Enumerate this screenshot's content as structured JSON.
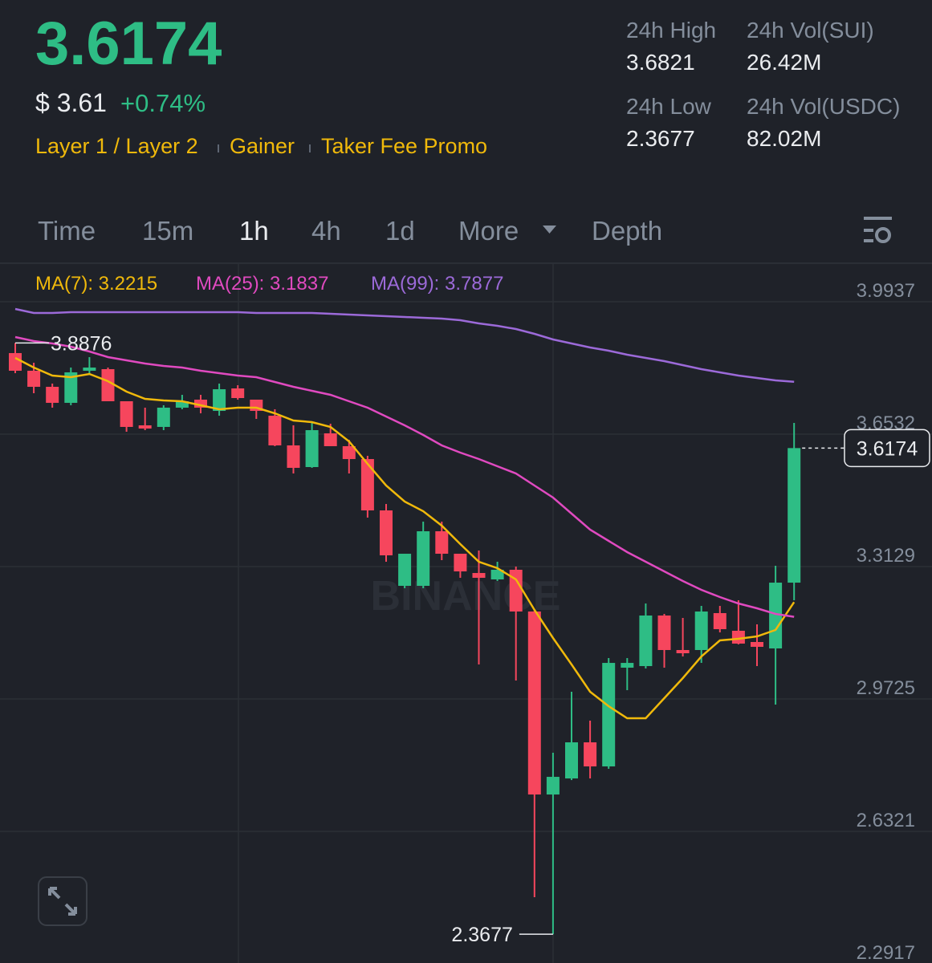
{
  "header": {
    "price": "3.6174",
    "fiat": "$ 3.61",
    "change": "+0.74%",
    "tags": [
      "Layer 1 / Layer 2",
      "Gainer",
      "Taker Fee Promo"
    ],
    "stats": [
      {
        "label": "24h High",
        "value": "3.6821"
      },
      {
        "label": "24h Vol(SUI)",
        "value": "26.42M"
      },
      {
        "label": "24h Low",
        "value": "2.3677"
      },
      {
        "label": "24h Vol(USDC)",
        "value": "82.02M"
      }
    ]
  },
  "tabs": [
    "Time",
    "15m",
    "1h",
    "4h",
    "1d",
    "More",
    "Depth"
  ],
  "chart_data": {
    "type": "candlestick",
    "watermark": "BINANCE",
    "up_color": "#2ebd85",
    "down_color": "#f6465d",
    "open": [
      3.8616,
      3.8162,
      3.7749,
      3.7337,
      3.8162,
      3.8203,
      3.7378,
      3.6759,
      3.6718,
      3.7213,
      3.7419,
      3.713,
      3.7708,
      3.7419,
      3.7006,
      3.6243,
      3.5686,
      3.6553,
      3.6223,
      3.5892,
      3.4572,
      3.2633,
      3.2633,
      3.4036,
      3.3458,
      3.2963,
      3.2798,
      3.3046,
      3.1973,
      2.7269,
      2.7682,
      2.861,
      2.7991,
      3.0529,
      3.057,
      3.187,
      3.0983,
      3.0983,
      3.1932,
      3.1478,
      3.1189,
      3.1024,
      3.2715
    ],
    "high": [
      3.8876,
      3.8368,
      3.7832,
      3.8244,
      3.8512,
      3.8244,
      3.7378,
      3.7213,
      3.7275,
      3.7543,
      3.7543,
      3.7832,
      3.779,
      3.7419,
      3.7172,
      3.6759,
      3.6862,
      3.68,
      3.6388,
      3.5975,
      3.4737,
      3.3458,
      3.4283,
      3.4283,
      3.3458,
      3.3541,
      3.3252,
      3.3128,
      3.2014,
      2.8342,
      2.991,
      2.9167,
      3.0776,
      3.0776,
      3.2179,
      3.1911,
      3.1808,
      3.2117,
      3.2117,
      3.2262,
      3.1643,
      3.3149,
      3.6821
    ],
    "low": [
      3.81,
      3.7584,
      3.7213,
      3.7275,
      3.81,
      3.7378,
      3.6594,
      3.6635,
      3.6635,
      3.7172,
      3.7068,
      3.7006,
      3.7419,
      3.6924,
      3.6223,
      3.5521,
      3.5666,
      3.6223,
      3.5521,
      3.4386,
      3.3252,
      3.2571,
      3.2571,
      3.3293,
      3.2839,
      3.0611,
      3.2757,
      3.0199,
      2.4628,
      2.3677,
      2.764,
      2.7682,
      2.7929,
      2.9951,
      3.0508,
      3.0529,
      3.0817,
      3.0652,
      3.1436,
      3.1127,
      3.057,
      2.958,
      3.2262
    ],
    "close": [
      3.8162,
      3.7749,
      3.7337,
      3.8121,
      3.8244,
      3.7378,
      3.6718,
      3.6676,
      3.7213,
      3.7378,
      3.7213,
      3.7687,
      3.746,
      3.713,
      3.6243,
      3.5666,
      3.6635,
      3.6223,
      3.5892,
      3.4572,
      3.3417,
      3.3458,
      3.4036,
      3.3458,
      3.3004,
      3.2839,
      3.3046,
      3.1973,
      2.7269,
      2.7723,
      2.861,
      2.7991,
      3.0652,
      3.0652,
      3.187,
      3.0983,
      3.09,
      3.1973,
      3.1519,
      3.1148,
      3.1065,
      3.2715,
      3.6174
    ],
    "series": [
      {
        "name": "MA(7): 3.2215",
        "color": "#f0b90b",
        "values": [
          3.8492,
          3.8244,
          3.8038,
          3.7997,
          3.8079,
          3.7894,
          3.7625,
          3.744,
          3.7398,
          3.7378,
          3.7275,
          3.7172,
          3.7213,
          3.7213,
          3.7068,
          3.6883,
          3.6841,
          3.6718,
          3.6346,
          3.5769,
          3.5212,
          3.4799,
          3.4552,
          3.418,
          3.3706,
          3.3252,
          3.3087,
          3.2798,
          3.2014,
          3.1292,
          3.0611,
          2.991,
          2.9538,
          2.9229,
          2.9229,
          2.9745,
          3.026,
          3.0817,
          3.123,
          3.1271,
          3.1333,
          3.1498,
          3.2215
        ]
      },
      {
        "name": "MA(25): 3.1837",
        "color": "#e04ac0",
        "values": [
          3.9028,
          3.8925,
          3.8863,
          3.8781,
          3.8657,
          3.8512,
          3.843,
          3.8347,
          3.8286,
          3.8244,
          3.8162,
          3.81,
          3.8038,
          3.7997,
          3.7873,
          3.7749,
          3.7646,
          3.7543,
          3.7378,
          3.7213,
          3.6986,
          3.6759,
          3.6511,
          3.6243,
          3.6058,
          3.5892,
          3.5707,
          3.5521,
          3.5212,
          3.4902,
          3.449,
          3.4077,
          3.3788,
          3.3499,
          3.3252,
          3.3004,
          3.2757,
          3.253,
          3.2344,
          3.2179,
          3.2055,
          3.1911,
          3.1837
        ]
      },
      {
        "name": "MA(99): 3.7877",
        "color": "#9c6ad9",
        "values": [
          3.975,
          3.9647,
          3.9647,
          3.9668,
          3.9668,
          3.9668,
          3.9668,
          3.9668,
          3.9668,
          3.9668,
          3.9668,
          3.9668,
          3.9668,
          3.9647,
          3.9647,
          3.9647,
          3.9647,
          3.9627,
          3.9606,
          3.9585,
          3.9565,
          3.9544,
          3.9523,
          3.9503,
          3.9461,
          3.9379,
          3.9317,
          3.9235,
          3.9111,
          3.8966,
          3.8863,
          3.876,
          3.8678,
          3.8574,
          3.8492,
          3.8409,
          3.8306,
          3.8203,
          3.8121,
          3.8038,
          3.7976,
          3.7914,
          3.7877
        ]
      }
    ],
    "max_label": "3.8876",
    "min_label": "2.3677",
    "last_label": "3.6174",
    "ylim": [
      2.2917,
      4.0926
    ],
    "yticks": [
      3.9937,
      3.6532,
      3.3129,
      2.9725,
      2.6321,
      2.2917
    ],
    "grid": true
  }
}
